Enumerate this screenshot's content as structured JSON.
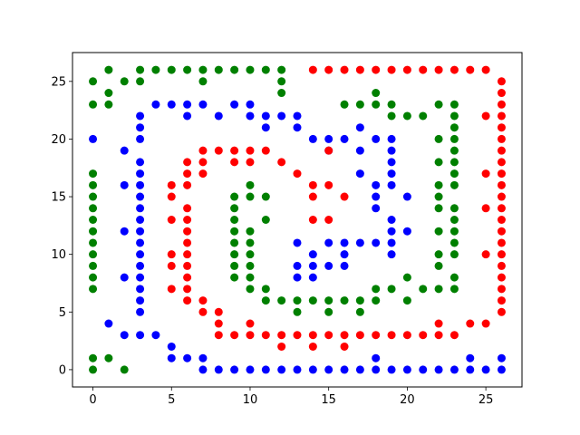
{
  "chart_data": {
    "type": "scatter",
    "title": "",
    "xlabel": "",
    "ylabel": "",
    "xlim": [
      -1.3,
      27.3
    ],
    "ylim": [
      -1.5,
      27.5
    ],
    "xticks": [
      0,
      5,
      10,
      15,
      20,
      25
    ],
    "yticks": [
      0,
      5,
      10,
      15,
      20,
      25
    ],
    "grid": false,
    "series": [
      {
        "name": "green",
        "color": "#008000",
        "points": [
          [
            0,
            0
          ],
          [
            0,
            1
          ],
          [
            1,
            1
          ],
          [
            2,
            0
          ],
          [
            0,
            7
          ],
          [
            0,
            8
          ],
          [
            0,
            9
          ],
          [
            0,
            10
          ],
          [
            0,
            11
          ],
          [
            0,
            12
          ],
          [
            0,
            13
          ],
          [
            0,
            14
          ],
          [
            0,
            15
          ],
          [
            0,
            16
          ],
          [
            0,
            17
          ],
          [
            0,
            23
          ],
          [
            0,
            25
          ],
          [
            1,
            23
          ],
          [
            1,
            24
          ],
          [
            1,
            26
          ],
          [
            2,
            25
          ],
          [
            3,
            25
          ],
          [
            3,
            26
          ],
          [
            4,
            26
          ],
          [
            5,
            26
          ],
          [
            6,
            26
          ],
          [
            7,
            25
          ],
          [
            7,
            26
          ],
          [
            8,
            26
          ],
          [
            9,
            26
          ],
          [
            10,
            26
          ],
          [
            11,
            26
          ],
          [
            12,
            24
          ],
          [
            12,
            25
          ],
          [
            12,
            26
          ],
          [
            9,
            8
          ],
          [
            9,
            9
          ],
          [
            9,
            10
          ],
          [
            9,
            11
          ],
          [
            9,
            12
          ],
          [
            9,
            13
          ],
          [
            9,
            14
          ],
          [
            9,
            15
          ],
          [
            10,
            7
          ],
          [
            10,
            8
          ],
          [
            10,
            9
          ],
          [
            10,
            10
          ],
          [
            10,
            11
          ],
          [
            10,
            12
          ],
          [
            10,
            15
          ],
          [
            10,
            16
          ],
          [
            11,
            6
          ],
          [
            11,
            7
          ],
          [
            11,
            13
          ],
          [
            11,
            15
          ],
          [
            12,
            6
          ],
          [
            13,
            5
          ],
          [
            13,
            6
          ],
          [
            14,
            6
          ],
          [
            15,
            5
          ],
          [
            15,
            6
          ],
          [
            16,
            6
          ],
          [
            17,
            5
          ],
          [
            17,
            6
          ],
          [
            18,
            6
          ],
          [
            18,
            7
          ],
          [
            19,
            7
          ],
          [
            20,
            6
          ],
          [
            20,
            8
          ],
          [
            21,
            7
          ],
          [
            22,
            7
          ],
          [
            22,
            9
          ],
          [
            22,
            10
          ],
          [
            22,
            12
          ],
          [
            22,
            14
          ],
          [
            22,
            15
          ],
          [
            22,
            16
          ],
          [
            22,
            18
          ],
          [
            22,
            20
          ],
          [
            22,
            23
          ],
          [
            23,
            7
          ],
          [
            23,
            8
          ],
          [
            23,
            10
          ],
          [
            23,
            11
          ],
          [
            23,
            12
          ],
          [
            23,
            13
          ],
          [
            23,
            14
          ],
          [
            23,
            16
          ],
          [
            23,
            17
          ],
          [
            23,
            18
          ],
          [
            23,
            19
          ],
          [
            23,
            20
          ],
          [
            23,
            21
          ],
          [
            23,
            22
          ],
          [
            23,
            23
          ],
          [
            21,
            22
          ],
          [
            20,
            22
          ],
          [
            19,
            22
          ],
          [
            19,
            23
          ],
          [
            18,
            23
          ],
          [
            18,
            24
          ],
          [
            17,
            23
          ],
          [
            16,
            23
          ]
        ]
      },
      {
        "name": "blue",
        "color": "#0000ff",
        "points": [
          [
            5,
            1
          ],
          [
            5,
            2
          ],
          [
            6,
            1
          ],
          [
            7,
            0
          ],
          [
            7,
            1
          ],
          [
            8,
            0
          ],
          [
            9,
            0
          ],
          [
            10,
            0
          ],
          [
            11,
            0
          ],
          [
            12,
            0
          ],
          [
            13,
            0
          ],
          [
            14,
            0
          ],
          [
            15,
            0
          ],
          [
            16,
            0
          ],
          [
            17,
            0
          ],
          [
            18,
            0
          ],
          [
            18,
            1
          ],
          [
            19,
            0
          ],
          [
            20,
            0
          ],
          [
            21,
            0
          ],
          [
            22,
            0
          ],
          [
            23,
            0
          ],
          [
            24,
            0
          ],
          [
            24,
            1
          ],
          [
            25,
            0
          ],
          [
            26,
            0
          ],
          [
            26,
            1
          ],
          [
            1,
            4
          ],
          [
            2,
            3
          ],
          [
            2,
            8
          ],
          [
            2,
            12
          ],
          [
            2,
            16
          ],
          [
            2,
            19
          ],
          [
            3,
            3
          ],
          [
            3,
            5
          ],
          [
            3,
            6
          ],
          [
            3,
            7
          ],
          [
            3,
            8
          ],
          [
            3,
            9
          ],
          [
            3,
            10
          ],
          [
            3,
            11
          ],
          [
            3,
            12
          ],
          [
            3,
            13
          ],
          [
            3,
            14
          ],
          [
            3,
            15
          ],
          [
            3,
            16
          ],
          [
            3,
            17
          ],
          [
            3,
            18
          ],
          [
            3,
            20
          ],
          [
            3,
            21
          ],
          [
            3,
            22
          ],
          [
            4,
            3
          ],
          [
            4,
            23
          ],
          [
            5,
            23
          ],
          [
            6,
            22
          ],
          [
            6,
            23
          ],
          [
            7,
            23
          ],
          [
            8,
            22
          ],
          [
            9,
            23
          ],
          [
            10,
            22
          ],
          [
            10,
            23
          ],
          [
            11,
            21
          ],
          [
            11,
            22
          ],
          [
            12,
            22
          ],
          [
            13,
            21
          ],
          [
            13,
            22
          ],
          [
            0,
            20
          ],
          [
            14,
            20
          ],
          [
            15,
            19
          ],
          [
            15,
            20
          ],
          [
            16,
            20
          ],
          [
            17,
            17
          ],
          [
            17,
            19
          ],
          [
            17,
            21
          ],
          [
            18,
            14
          ],
          [
            18,
            15
          ],
          [
            18,
            16
          ],
          [
            18,
            20
          ],
          [
            19,
            10
          ],
          [
            19,
            11
          ],
          [
            19,
            12
          ],
          [
            19,
            13
          ],
          [
            19,
            16
          ],
          [
            19,
            17
          ],
          [
            19,
            18
          ],
          [
            19,
            19
          ],
          [
            19,
            20
          ],
          [
            20,
            12
          ],
          [
            20,
            15
          ],
          [
            18,
            11
          ],
          [
            17,
            11
          ],
          [
            16,
            10
          ],
          [
            16,
            11
          ],
          [
            16,
            9
          ],
          [
            15,
            9
          ],
          [
            15,
            11
          ],
          [
            14,
            8
          ],
          [
            14,
            9
          ],
          [
            14,
            10
          ],
          [
            13,
            8
          ],
          [
            13,
            9
          ],
          [
            13,
            11
          ]
        ]
      },
      {
        "name": "red",
        "color": "#ff0000",
        "points": [
          [
            14,
            26
          ],
          [
            15,
            26
          ],
          [
            16,
            26
          ],
          [
            17,
            26
          ],
          [
            18,
            26
          ],
          [
            19,
            26
          ],
          [
            20,
            26
          ],
          [
            21,
            26
          ],
          [
            22,
            26
          ],
          [
            23,
            26
          ],
          [
            24,
            26
          ],
          [
            25,
            26
          ],
          [
            26,
            25
          ],
          [
            26,
            24
          ],
          [
            26,
            23
          ],
          [
            26,
            22
          ],
          [
            26,
            21
          ],
          [
            26,
            20
          ],
          [
            26,
            19
          ],
          [
            26,
            18
          ],
          [
            26,
            17
          ],
          [
            26,
            16
          ],
          [
            26,
            15
          ],
          [
            26,
            14
          ],
          [
            26,
            13
          ],
          [
            26,
            12
          ],
          [
            26,
            11
          ],
          [
            26,
            10
          ],
          [
            26,
            9
          ],
          [
            26,
            8
          ],
          [
            26,
            7
          ],
          [
            26,
            6
          ],
          [
            26,
            5
          ],
          [
            25,
            22
          ],
          [
            25,
            17
          ],
          [
            25,
            14
          ],
          [
            25,
            10
          ],
          [
            25,
            4
          ],
          [
            24,
            4
          ],
          [
            23,
            3
          ],
          [
            22,
            3
          ],
          [
            22,
            4
          ],
          [
            21,
            3
          ],
          [
            20,
            3
          ],
          [
            19,
            3
          ],
          [
            18,
            3
          ],
          [
            17,
            3
          ],
          [
            16,
            3
          ],
          [
            16,
            2
          ],
          [
            15,
            3
          ],
          [
            14,
            2
          ],
          [
            14,
            3
          ],
          [
            13,
            3
          ],
          [
            12,
            2
          ],
          [
            12,
            3
          ],
          [
            11,
            3
          ],
          [
            10,
            3
          ],
          [
            10,
            4
          ],
          [
            9,
            3
          ],
          [
            8,
            3
          ],
          [
            8,
            4
          ],
          [
            8,
            5
          ],
          [
            7,
            5
          ],
          [
            7,
            6
          ],
          [
            6,
            6
          ],
          [
            6,
            7
          ],
          [
            6,
            8
          ],
          [
            6,
            9
          ],
          [
            6,
            10
          ],
          [
            6,
            11
          ],
          [
            6,
            12
          ],
          [
            6,
            13
          ],
          [
            6,
            14
          ],
          [
            6,
            16
          ],
          [
            6,
            17
          ],
          [
            6,
            18
          ],
          [
            5,
            7
          ],
          [
            5,
            9
          ],
          [
            5,
            10
          ],
          [
            5,
            13
          ],
          [
            5,
            15
          ],
          [
            5,
            16
          ],
          [
            7,
            17
          ],
          [
            7,
            18
          ],
          [
            7,
            19
          ],
          [
            8,
            19
          ],
          [
            9,
            18
          ],
          [
            9,
            19
          ],
          [
            10,
            18
          ],
          [
            10,
            19
          ],
          [
            11,
            19
          ],
          [
            12,
            18
          ],
          [
            13,
            17
          ],
          [
            14,
            15
          ],
          [
            14,
            16
          ],
          [
            14,
            13
          ],
          [
            15,
            13
          ],
          [
            15,
            16
          ],
          [
            16,
            15
          ],
          [
            15,
            19
          ]
        ]
      }
    ]
  }
}
